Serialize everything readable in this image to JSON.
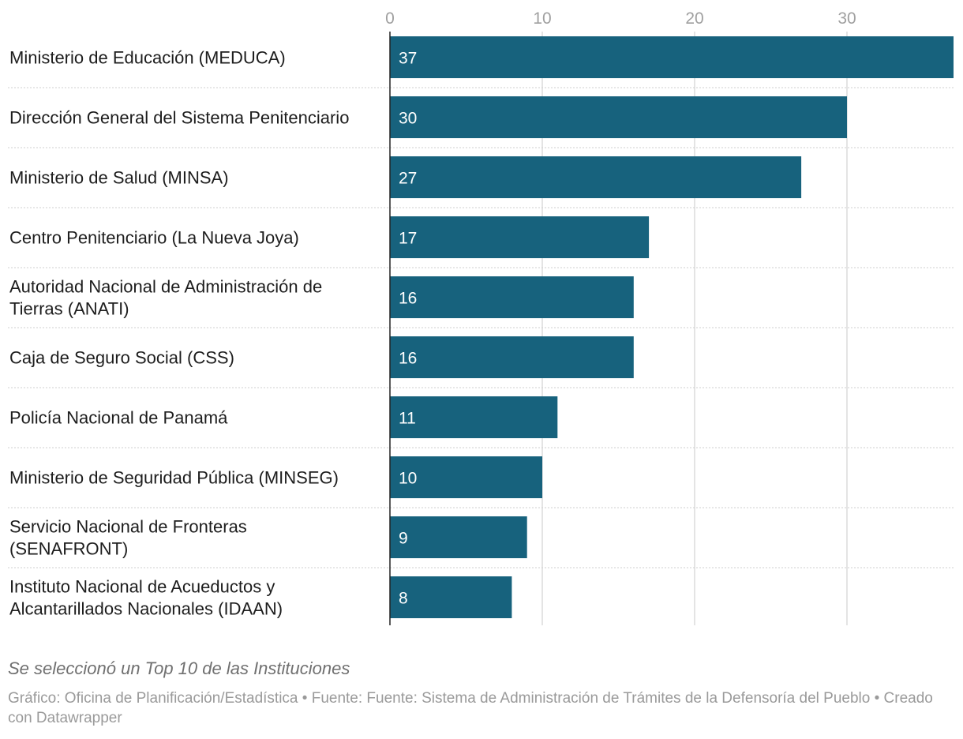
{
  "chart_data": {
    "type": "bar",
    "orientation": "horizontal",
    "categories": [
      "Ministerio de Educación (MEDUCA)",
      "Dirección General del Sistema Penitenciario",
      "Ministerio de Salud (MINSA)",
      "Centro Penitenciario (La Nueva Joya)",
      "Autoridad Nacional de Administración de Tierras (ANATI)",
      "Caja de Seguro Social (CSS)",
      "Policía Nacional de Panamá",
      "Ministerio de Seguridad Pública (MINSEG)",
      "Servicio Nacional de Fronteras (SENAFRONT)",
      "Instituto Nacional de Acueductos y Alcantarillados Nacionales (IDAAN)"
    ],
    "category_lines": [
      [
        "Ministerio de Educación (MEDUCA)"
      ],
      [
        "Dirección General del Sistema Penitenciario"
      ],
      [
        "Ministerio de Salud (MINSA)"
      ],
      [
        "Centro Penitenciario (La Nueva Joya)"
      ],
      [
        "Autoridad Nacional de Administración de",
        "Tierras (ANATI)"
      ],
      [
        "Caja de Seguro Social (CSS)"
      ],
      [
        "Policía Nacional de Panamá"
      ],
      [
        "Ministerio de Seguridad Pública (MINSEG)"
      ],
      [
        "Servicio Nacional de Fronteras",
        "(SENAFRONT)"
      ],
      [
        "Instituto Nacional de Acueductos y",
        "Alcantarillados Nacionales (IDAAN)"
      ]
    ],
    "values": [
      37,
      30,
      27,
      17,
      16,
      16,
      11,
      10,
      9,
      8
    ],
    "xticks": [
      0,
      10,
      20,
      30
    ],
    "xlim": [
      0,
      37
    ],
    "grid": true,
    "bar_color": "#17627d",
    "title": "",
    "xlabel": "",
    "ylabel": ""
  },
  "notes": "Se seleccionó un Top 10 de las Instituciones",
  "footer": "Gráfico: Oficina de Planificación/Estadística • Fuente: Fuente: Sistema de Administración de Trámites de la Defensoría del Pueblo • Creado con Datawrapper"
}
